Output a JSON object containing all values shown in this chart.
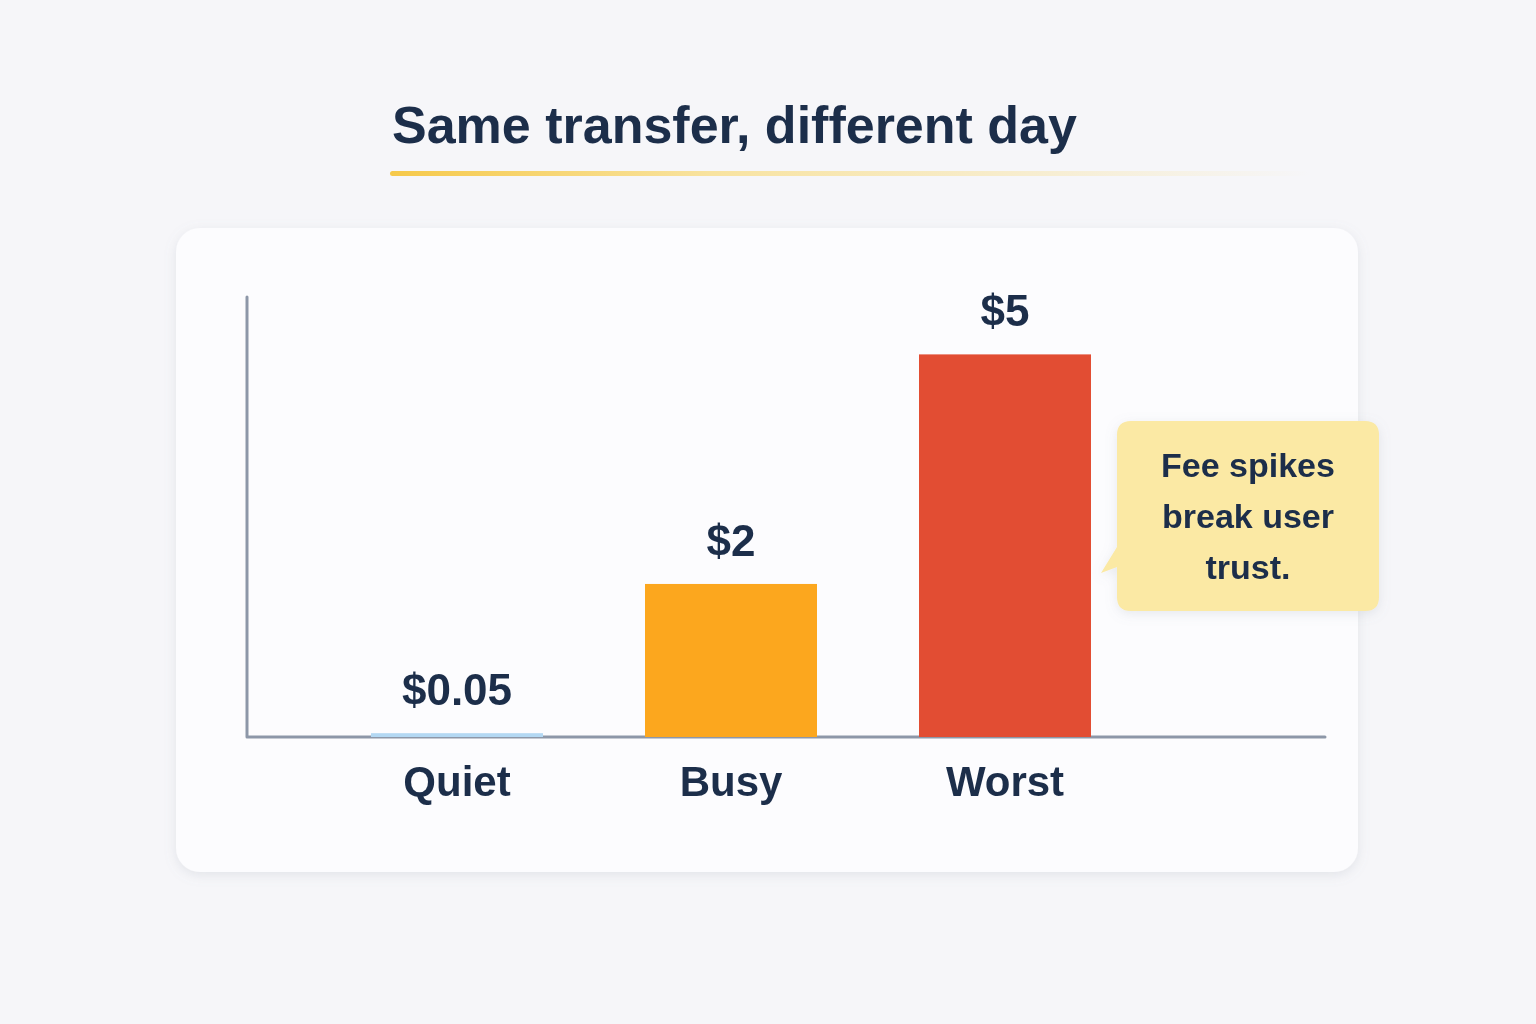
{
  "chart_data": {
    "type": "bar",
    "title": "Same transfer, different day",
    "categories": [
      "Quiet",
      "Busy",
      "Worst"
    ],
    "values": [
      0.05,
      2,
      5
    ],
    "value_labels": [
      "$0.05",
      "$2",
      "$5"
    ],
    "colors": [
      "#b3d8f3",
      "#fca71e",
      "#e24d33"
    ],
    "annotations": [
      "Fee spikes break user trust."
    ]
  }
}
